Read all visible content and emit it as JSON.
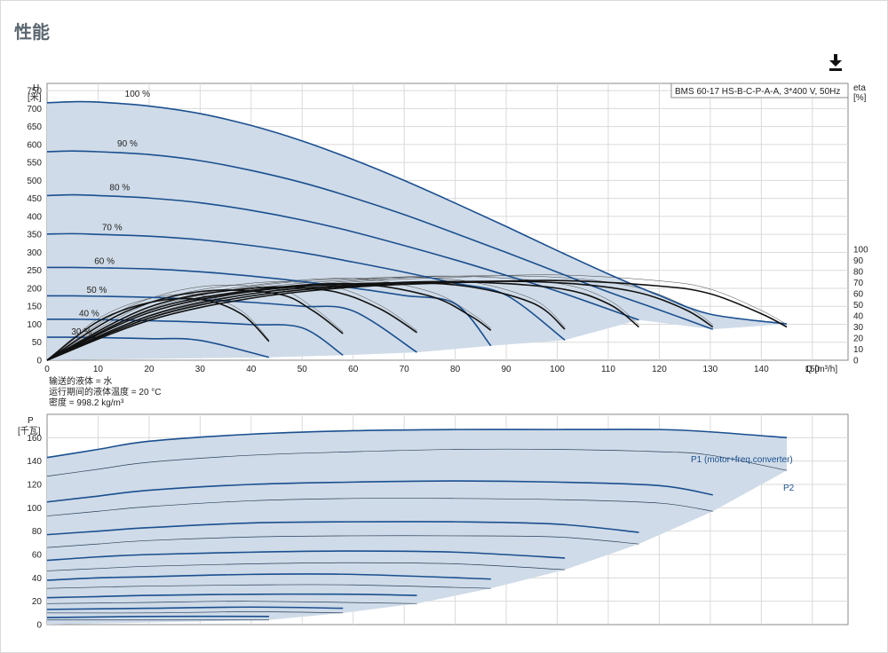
{
  "page": {
    "title": "性能"
  },
  "toolbar": {
    "download_icon": "download-icon"
  },
  "colors": {
    "envelope_fill": "#cfdbe8",
    "main_curve": "#1a4f8f",
    "grid": "#dadada",
    "axis": "#333333",
    "eta": "#111111",
    "label_blue": "#1a4f8f"
  },
  "chart_data": [
    {
      "type": "line",
      "title": "",
      "product_box": "BMS 60-17 HS-B-C-P-A-A, 3*400 V, 50Hz",
      "xlabel": "Q [m³/h]",
      "ylabel": "H\n[米]",
      "y2label": "eta\n[%]",
      "x_ticks": [
        "0",
        "10",
        "20",
        "30",
        "40",
        "50",
        "60",
        "70",
        "80",
        "90",
        "100",
        "110",
        "120",
        "130",
        "140",
        "150"
      ],
      "y_ticks": [
        "0",
        "50",
        "100",
        "150",
        "200",
        "250",
        "300",
        "350",
        "400",
        "450",
        "500",
        "550",
        "600",
        "650",
        "700",
        "750"
      ],
      "y2_ticks": [
        "0",
        "10",
        "20",
        "30",
        "40",
        "50",
        "60",
        "70",
        "80",
        "90",
        "100"
      ],
      "xlim": [
        0,
        157
      ],
      "ylim": [
        0,
        770
      ],
      "y2lim": [
        0,
        250
      ],
      "grid": true,
      "speed_labels": [
        "100 %",
        "90 %",
        "80 %",
        "70 %",
        "60 %",
        "50 %",
        "40 %",
        "30 %"
      ],
      "head_series": [
        {
          "name": "100 %",
          "x": [
            0,
            5,
            10,
            20,
            30,
            40,
            50,
            60,
            70,
            80,
            90,
            100,
            110,
            120,
            130,
            145
          ],
          "y": [
            716,
            719,
            718,
            707,
            686,
            653,
            610,
            558,
            500,
            437,
            372,
            305,
            240,
            180,
            128,
            101
          ]
        },
        {
          "name": "90 %",
          "x": [
            0,
            5,
            10,
            20,
            30,
            40,
            50,
            60,
            70,
            80,
            90,
            100,
            110,
            120,
            130.5
          ],
          "y": [
            580,
            582,
            580,
            572,
            555,
            528,
            494,
            452,
            405,
            353,
            300,
            245,
            190,
            140,
            86
          ]
        },
        {
          "name": "80 %",
          "x": [
            0,
            5,
            10,
            20,
            30,
            40,
            50,
            60,
            70,
            80,
            90,
            100,
            116
          ],
          "y": [
            458,
            460,
            458,
            451,
            438,
            417,
            390,
            357,
            319,
            279,
            236,
            192,
            112
          ]
        },
        {
          "name": "70 %",
          "x": [
            0,
            5,
            10,
            20,
            30,
            40,
            50,
            60,
            70,
            80,
            90,
            101.5
          ],
          "y": [
            351,
            352,
            350,
            345,
            335,
            319,
            299,
            273,
            245,
            214,
            181,
            56
          ]
        },
        {
          "name": "60 %",
          "x": [
            0,
            5,
            10,
            20,
            30,
            40,
            50,
            60,
            70,
            80,
            87
          ],
          "y": [
            258,
            258,
            257,
            254,
            246,
            234,
            219,
            201,
            180,
            157,
            40
          ]
        },
        {
          "name": "50 %",
          "x": [
            0,
            5,
            10,
            20,
            30,
            40,
            50,
            60,
            72.5
          ],
          "y": [
            179,
            179,
            178,
            175,
            169,
            161,
            150,
            137,
            22
          ]
        },
        {
          "name": "40 %",
          "x": [
            0,
            5,
            10,
            20,
            30,
            40,
            50,
            58
          ],
          "y": [
            114,
            114,
            113,
            110,
            106,
            99,
            90,
            14
          ]
        },
        {
          "name": "30 %",
          "x": [
            0,
            5,
            10,
            20,
            30,
            43.5
          ],
          "y": [
            64,
            64,
            63,
            60,
            55,
            8
          ]
        }
      ],
      "eta_series": [
        {
          "name": "100 %",
          "x": [
            0,
            20,
            40,
            60,
            80,
            100,
            120,
            130,
            140,
            145
          ],
          "y": [
            0,
            36,
            56,
            66,
            70,
            72,
            67,
            60,
            42,
            30
          ]
        },
        {
          "name": "90 %",
          "x": [
            0,
            20,
            40,
            60,
            80,
            100,
            115,
            125,
            130.5
          ],
          "y": [
            0,
            38,
            58,
            67,
            71,
            70,
            62,
            46,
            30
          ]
        },
        {
          "name": "80 %",
          "x": [
            0,
            20,
            40,
            60,
            80,
            100,
            110,
            116
          ],
          "y": [
            0,
            40,
            60,
            68,
            71,
            65,
            51,
            30
          ]
        },
        {
          "name": "70 %",
          "x": [
            0,
            20,
            40,
            60,
            80,
            95,
            101.5
          ],
          "y": [
            0,
            43,
            62,
            69,
            68,
            52,
            28
          ]
        },
        {
          "name": "60 %",
          "x": [
            0,
            20,
            40,
            60,
            75,
            83,
            87
          ],
          "y": [
            0,
            45,
            63,
            69,
            58,
            40,
            27
          ]
        },
        {
          "name": "50 %",
          "x": [
            0,
            20,
            40,
            55,
            65,
            72.5
          ],
          "y": [
            0,
            48,
            65,
            63,
            47,
            25
          ]
        },
        {
          "name": "40 %",
          "x": [
            0,
            15,
            30,
            45,
            52,
            58
          ],
          "y": [
            0,
            43,
            62,
            60,
            45,
            24
          ]
        },
        {
          "name": "30 %",
          "x": [
            0,
            10,
            20,
            30,
            38,
            43.5
          ],
          "y": [
            0,
            35,
            52,
            55,
            42,
            17
          ]
        }
      ],
      "fluid_info": [
        "输送的液体 = 水",
        "运行期间的液体温度 = 20 °C",
        "密度 = 998.2 kg/m³"
      ]
    },
    {
      "type": "line",
      "title": "",
      "ylabel": "P\n[千瓦]",
      "y_ticks": [
        "0",
        "20",
        "40",
        "60",
        "80",
        "100",
        "120",
        "140",
        "160"
      ],
      "ylim": [
        0,
        180
      ],
      "xlim": [
        0,
        157
      ],
      "grid": true,
      "series_labels": [
        "P1 (motor+freq.converter)",
        "P2"
      ],
      "p1_series": [
        {
          "name": "100 %",
          "x": [
            0,
            10,
            20,
            40,
            60,
            80,
            100,
            120,
            130,
            145
          ],
          "y": [
            143,
            150,
            157,
            163,
            166,
            167,
            167,
            167,
            165,
            160
          ]
        },
        {
          "name": "90 %",
          "x": [
            0,
            10,
            20,
            40,
            60,
            80,
            100,
            120,
            130.5
          ],
          "y": [
            105,
            110,
            115,
            120,
            122,
            123,
            122,
            119,
            111
          ]
        },
        {
          "name": "80 %",
          "x": [
            0,
            10,
            20,
            40,
            60,
            80,
            100,
            116
          ],
          "y": [
            77,
            80,
            83,
            87,
            88,
            88,
            86,
            79
          ]
        },
        {
          "name": "70 %",
          "x": [
            0,
            10,
            20,
            40,
            60,
            80,
            101.5
          ],
          "y": [
            55,
            58,
            60,
            62,
            63,
            62,
            57
          ]
        },
        {
          "name": "60 %",
          "x": [
            0,
            10,
            20,
            40,
            60,
            87
          ],
          "y": [
            38,
            40,
            41,
            43,
            43,
            39
          ]
        },
        {
          "name": "50 %",
          "x": [
            0,
            10,
            20,
            40,
            60,
            72.5
          ],
          "y": [
            23,
            24,
            25,
            26,
            26,
            25
          ]
        },
        {
          "name": "40 %",
          "x": [
            0,
            20,
            40,
            58
          ],
          "y": [
            13,
            14,
            15,
            14
          ]
        },
        {
          "name": "30 %",
          "x": [
            0,
            20,
            43.5
          ],
          "y": [
            6,
            7,
            7
          ]
        }
      ],
      "p2_series": [
        {
          "name": "100 %",
          "x": [
            0,
            10,
            20,
            40,
            60,
            80,
            100,
            120,
            130,
            145
          ],
          "y": [
            127,
            133,
            139,
            145,
            148,
            150,
            150,
            148,
            145,
            132
          ]
        },
        {
          "name": "90 %",
          "x": [
            0,
            10,
            20,
            40,
            60,
            80,
            100,
            120,
            130.5
          ],
          "y": [
            93,
            97,
            101,
            106,
            108,
            108,
            107,
            104,
            97
          ]
        },
        {
          "name": "80 %",
          "x": [
            0,
            10,
            20,
            40,
            60,
            80,
            100,
            116
          ],
          "y": [
            66,
            69,
            72,
            75,
            76,
            76,
            75,
            69
          ]
        },
        {
          "name": "70 %",
          "x": [
            0,
            10,
            20,
            40,
            60,
            80,
            101.5
          ],
          "y": [
            46,
            48,
            50,
            52,
            53,
            52,
            47
          ]
        },
        {
          "name": "60 %",
          "x": [
            0,
            20,
            40,
            60,
            87
          ],
          "y": [
            31,
            33,
            34,
            34,
            31
          ]
        },
        {
          "name": "50 %",
          "x": [
            0,
            20,
            40,
            72.5
          ],
          "y": [
            18,
            19,
            20,
            18
          ]
        },
        {
          "name": "40 %",
          "x": [
            0,
            20,
            40,
            58
          ],
          "y": [
            10,
            10,
            11,
            10
          ]
        },
        {
          "name": "30 %",
          "x": [
            0,
            20,
            43.5
          ],
          "y": [
            4,
            4,
            4
          ]
        }
      ]
    }
  ]
}
